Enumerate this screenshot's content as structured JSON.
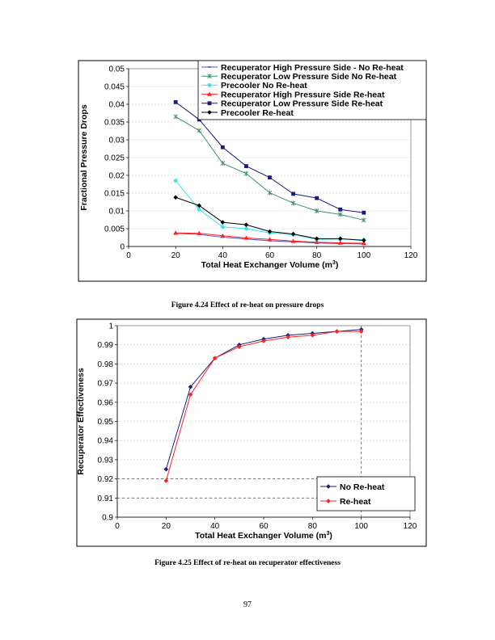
{
  "chart_data": [
    {
      "type": "line",
      "xlabel": "Total Heat Exchanger Volume (m3)",
      "ylabel": "Fractional Pressure Drops",
      "xlim": [
        0,
        120
      ],
      "ylim": [
        0,
        0.05
      ],
      "xticks": [
        "0",
        "20",
        "40",
        "60",
        "80",
        "100",
        "120"
      ],
      "yticks": [
        "0",
        "0.005",
        "0.01",
        "0.015",
        "0.02",
        "0.025",
        "0.03",
        "0.035",
        "0.04",
        "0.045",
        "0.05"
      ],
      "grid": true,
      "legend_position": "top-right",
      "x": [
        20,
        30,
        40,
        50,
        60,
        70,
        80,
        90,
        100
      ],
      "series": [
        {
          "name": "Recuperator High Pressure Side - No Re-heat",
          "color": "#5050c8",
          "marker": "dash",
          "values": [
            0.0037,
            0.0034,
            0.0026,
            0.0021,
            0.0016,
            0.0013,
            0.001,
            0.0008,
            0.0007
          ]
        },
        {
          "name": "Recuperator Low Pressure Side No Re-heat",
          "color": "#3f8f6f",
          "marker": "x",
          "values": [
            0.0365,
            0.0326,
            0.0234,
            0.0205,
            0.0151,
            0.0122,
            0.01,
            0.009,
            0.0074
          ]
        },
        {
          "name": "Precooler No Re-heat",
          "color": "#33e6f0",
          "marker": "circle",
          "values": [
            0.0185,
            0.0104,
            0.0055,
            0.005,
            0.0038,
            0.0033,
            0.002,
            0.0021,
            0.0019
          ]
        },
        {
          "name": "Recuperator High Pressure Side Re-heat",
          "color": "#ff2020",
          "marker": "triangle",
          "values": [
            0.0038,
            0.0037,
            0.003,
            0.0024,
            0.002,
            0.0015,
            0.0012,
            0.001,
            0.0009
          ]
        },
        {
          "name": "Recuperator Low Pressure Side Re-heat",
          "color": "#1a1a80",
          "marker": "square",
          "values": [
            0.0406,
            0.0357,
            0.0279,
            0.0226,
            0.0194,
            0.0148,
            0.0136,
            0.0104,
            0.0095
          ]
        },
        {
          "name": "Precooler Re-heat",
          "color": "#000000",
          "marker": "diamond",
          "values": [
            0.0138,
            0.0115,
            0.0068,
            0.0061,
            0.0042,
            0.0035,
            0.0022,
            0.0022,
            0.0017
          ]
        }
      ]
    },
    {
      "type": "line",
      "xlabel": "Total Heat Exchanger Volume (m3)",
      "ylabel": "Recuperator Effectiveness",
      "xlim": [
        0,
        120
      ],
      "ylim": [
        0.9,
        1.0
      ],
      "xticks": [
        "0",
        "20",
        "40",
        "60",
        "80",
        "100",
        "120"
      ],
      "yticks": [
        "0.9",
        "0.91",
        "0.92",
        "0.93",
        "0.94",
        "0.95",
        "0.96",
        "0.97",
        "0.98",
        "0.99",
        "1"
      ],
      "grid": true,
      "legend_position": "bottom-right",
      "reference_lines": {
        "horizontal": [
          0.92,
          0.91
        ],
        "vertical": [
          100
        ]
      },
      "x": [
        20,
        30,
        40,
        50,
        60,
        70,
        80,
        90,
        100
      ],
      "series": [
        {
          "name": "No Re-heat",
          "color": "#1a1a80",
          "marker": "diamond",
          "values": [
            0.925,
            0.968,
            0.983,
            0.99,
            0.993,
            0.995,
            0.996,
            0.997,
            0.998
          ]
        },
        {
          "name": "Re-heat",
          "color": "#ff2020",
          "marker": "diamond",
          "values": [
            0.919,
            0.964,
            0.983,
            0.989,
            0.992,
            0.994,
            0.995,
            0.997,
            0.997
          ]
        }
      ]
    }
  ],
  "captions": {
    "fig1": "Figure 4.24 Effect of re-heat on pressure drops",
    "fig2": "Figure 4.25 Effect of re-heat on recuperator effectiveness"
  },
  "page_number": "97"
}
